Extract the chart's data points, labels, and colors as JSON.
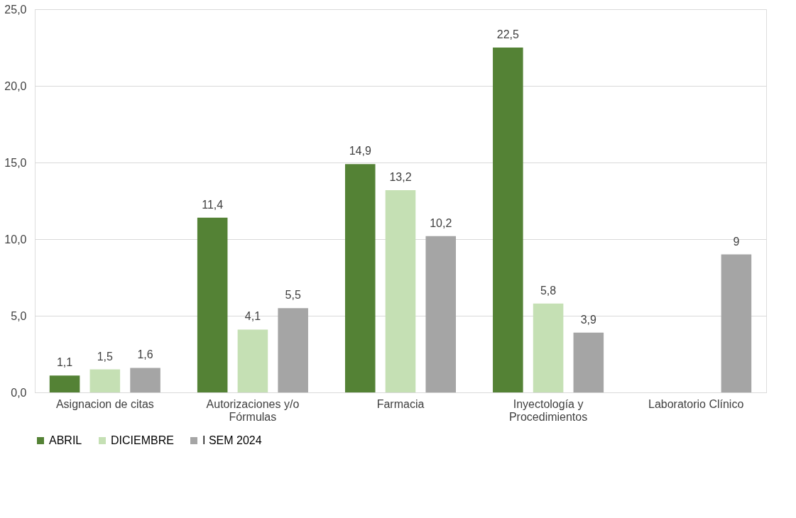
{
  "chart_data": {
    "type": "bar",
    "categories": [
      "Asignacion de citas",
      "Autorizaciones y/o Fórmulas",
      "Farmacia",
      "Inyectología y Procedimientos",
      "Laboratorio Clínico"
    ],
    "series": [
      {
        "name": "ABRIL",
        "color": "#548235",
        "values": [
          1.1,
          11.4,
          14.9,
          22.5,
          null
        ],
        "value_labels": [
          "1,1",
          "11,4",
          "14,9",
          "22,5",
          null
        ]
      },
      {
        "name": "DICIEMBRE",
        "color": "#c5e0b4",
        "values": [
          1.5,
          4.1,
          13.2,
          5.8,
          null
        ],
        "value_labels": [
          "1,5",
          "4,1",
          "13,2",
          "5,8",
          null
        ]
      },
      {
        "name": "I SEM 2024",
        "color": "#a5a5a5",
        "values": [
          1.6,
          5.5,
          10.2,
          3.9,
          9
        ],
        "value_labels": [
          "1,6",
          "5,5",
          "10,2",
          "3,9",
          "9"
        ]
      }
    ],
    "ylim": [
      0,
      25
    ],
    "yticks": [
      {
        "value": 0,
        "label": "0,0"
      },
      {
        "value": 5,
        "label": "5,0"
      },
      {
        "value": 10,
        "label": "10,0"
      },
      {
        "value": 15,
        "label": "15,0"
      },
      {
        "value": 20,
        "label": "20,0"
      },
      {
        "value": 25,
        "label": "25,0"
      }
    ],
    "grid": "y",
    "legend": "bottom"
  }
}
